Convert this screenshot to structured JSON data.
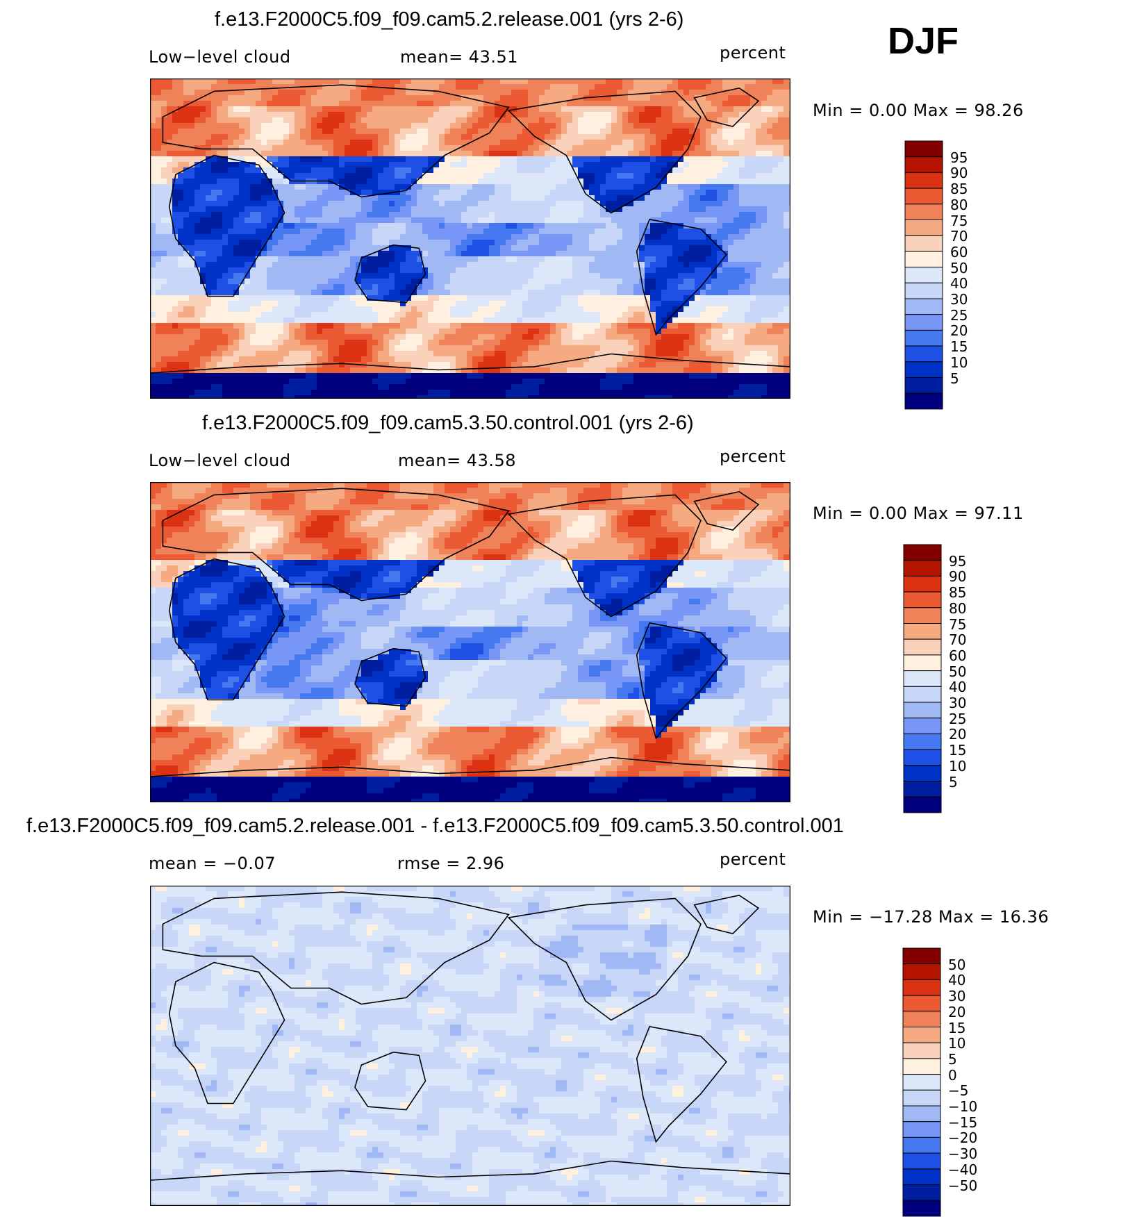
{
  "season": "DJF",
  "colors": {
    "abs_scale": [
      "#00007f",
      "#001ea0",
      "#0032c8",
      "#1e50e6",
      "#4678f0",
      "#7896f5",
      "#a0b9f5",
      "#c8d7f8",
      "#dce8fa",
      "#fff0e0",
      "#fad2bc",
      "#f5aa82",
      "#f0825a",
      "#eb5a32",
      "#dc3214",
      "#b41400",
      "#820000"
    ],
    "diff_scale": [
      "#00007f",
      "#001ea0",
      "#0032c8",
      "#1e50e6",
      "#4678f0",
      "#7896f5",
      "#a0b9f5",
      "#c8d7f8",
      "#dce8fa",
      "#fff0e0",
      "#fad2bc",
      "#f5aa82",
      "#f0825a",
      "#eb5a32",
      "#dc3214",
      "#b41400",
      "#820000"
    ]
  },
  "panels": [
    {
      "title": "f.e13.F2000C5.f09_f09.cam5.2.release.001 (yrs 2-6)",
      "left_label": "Low−level cloud",
      "center_label": "mean=   43.51",
      "units": "percent",
      "minmax": "Min  =      0.00  Max  =    98.26",
      "colorbar_labels": [
        "95",
        "90",
        "85",
        "80",
        "75",
        "70",
        "60",
        "50",
        "40",
        "30",
        "25",
        "20",
        "15",
        "10",
        "5"
      ],
      "scale": "abs"
    },
    {
      "title": "f.e13.F2000C5.f09_f09.cam5.3.50.control.001 (yrs 2-6)",
      "left_label": "Low−level cloud",
      "center_label": "mean=   43.58",
      "units": "percent",
      "minmax": "Min  =      0.00  Max  =    97.11",
      "colorbar_labels": [
        "95",
        "90",
        "85",
        "80",
        "75",
        "70",
        "60",
        "50",
        "40",
        "30",
        "25",
        "20",
        "15",
        "10",
        "5"
      ],
      "scale": "abs"
    },
    {
      "title": "f.e13.F2000C5.f09_f09.cam5.2.release.001 - f.e13.F2000C5.f09_f09.cam5.3.50.control.001",
      "left_label": "mean  =    −0.07",
      "center_label": "rmse  =     2.96",
      "units": "percent",
      "minmax": "Min  = −17.28  Max  =    16.36",
      "colorbar_labels": [
        "50",
        "40",
        "30",
        "20",
        "15",
        "10",
        "5",
        "0",
        "−5",
        "−10",
        "−15",
        "−20",
        "−30",
        "−40",
        "−50"
      ],
      "scale": "diff"
    }
  ],
  "chart_data": [
    {
      "type": "heatmap",
      "title": "f.e13.F2000C5.f09_f09.cam5.2.release.001 (yrs 2-6)",
      "variable": "Low−level cloud",
      "units": "percent",
      "mean": 43.51,
      "min": 0.0,
      "max": 98.26,
      "contour_levels": [
        5,
        10,
        15,
        20,
        25,
        30,
        40,
        50,
        60,
        70,
        75,
        80,
        85,
        90,
        95
      ]
    },
    {
      "type": "heatmap",
      "title": "f.e13.F2000C5.f09_f09.cam5.3.50.control.001 (yrs 2-6)",
      "variable": "Low−level cloud",
      "units": "percent",
      "mean": 43.58,
      "min": 0.0,
      "max": 97.11,
      "contour_levels": [
        5,
        10,
        15,
        20,
        25,
        30,
        40,
        50,
        60,
        70,
        75,
        80,
        85,
        90,
        95
      ]
    },
    {
      "type": "heatmap",
      "title": "f.e13.F2000C5.f09_f09.cam5.2.release.001 - f.e13.F2000C5.f09_f09.cam5.3.50.control.001",
      "units": "percent",
      "mean": -0.07,
      "rmse": 2.96,
      "min": -17.28,
      "max": 16.36,
      "contour_levels": [
        -50,
        -40,
        -30,
        -20,
        -15,
        -10,
        -5,
        0,
        5,
        10,
        15,
        20,
        30,
        40,
        50
      ]
    }
  ]
}
